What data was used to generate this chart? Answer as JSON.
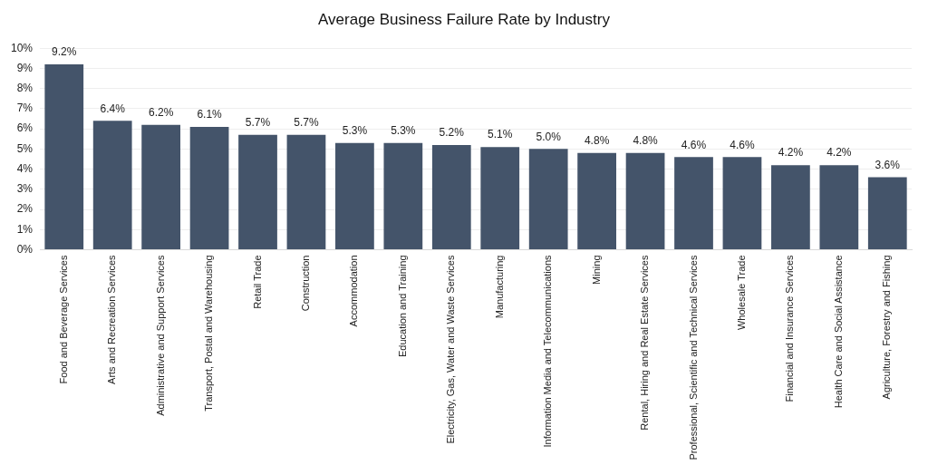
{
  "chart_data": {
    "type": "bar",
    "title": "Average Business Failure Rate by Industry",
    "categories": [
      "Food and Beverage Services",
      "Arts and Recreation Services",
      "Administrative and Support Services",
      "Transport, Postal and Warehousing",
      "Retail Trade",
      "Construction",
      "Accommodation",
      "Education and Training",
      "Electricity, Gas, Water and Waste Services",
      "Manufacturing",
      "Information Media and Telecommunications",
      "Mining",
      "Rental, Hiring and Real Estate Services",
      "Professional, Scientific and Technical Services",
      "Wholesale Trade",
      "Financial and Insurance Services",
      "Health Care and Social Assistance",
      "Agriculture, Forestry and Fishing"
    ],
    "values": [
      9.2,
      6.4,
      6.2,
      6.1,
      5.7,
      5.7,
      5.3,
      5.3,
      5.2,
      5.1,
      5.0,
      4.8,
      4.8,
      4.6,
      4.6,
      4.2,
      4.2,
      3.6
    ],
    "value_labels": [
      "9.2%",
      "6.4%",
      "6.2%",
      "6.1%",
      "5.7%",
      "5.7%",
      "5.3%",
      "5.3%",
      "5.2%",
      "5.1%",
      "5.0%",
      "4.8%",
      "4.8%",
      "4.6%",
      "4.6%",
      "4.2%",
      "4.2%",
      "3.6%"
    ],
    "color": "#44546a",
    "ylim": [
      0,
      10
    ],
    "yticks": [
      {
        "value": 0,
        "label": "0%"
      },
      {
        "value": 1,
        "label": "1%"
      },
      {
        "value": 2,
        "label": "2%"
      },
      {
        "value": 3,
        "label": "3%"
      },
      {
        "value": 4,
        "label": "4%"
      },
      {
        "value": 5,
        "label": "5%"
      },
      {
        "value": 6,
        "label": "6%"
      },
      {
        "value": 7,
        "label": "7%"
      },
      {
        "value": 8,
        "label": "8%"
      },
      {
        "value": 9,
        "label": "9%"
      },
      {
        "value": 10,
        "label": "10%"
      }
    ],
    "grid": "y",
    "legend": false
  }
}
